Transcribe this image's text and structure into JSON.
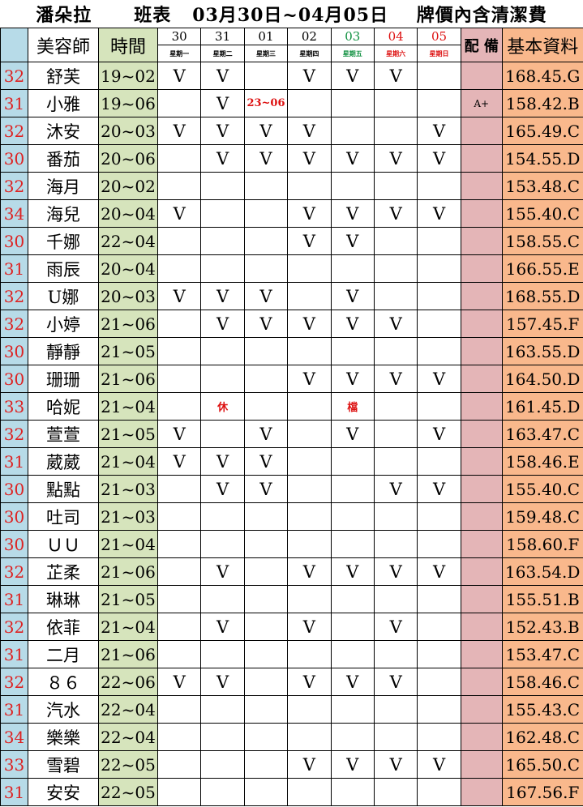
{
  "title": "潘朵拉      班表   03月30日~04月05日    牌價內含清潔費",
  "headers": {
    "name": "美容師",
    "time": "時間",
    "peibei": "配 備",
    "info": "基本資料"
  },
  "days": [
    {
      "d": "30",
      "w": "星期一"
    },
    {
      "d": "31",
      "w": "星期二"
    },
    {
      "d": "01",
      "w": "星期三"
    },
    {
      "d": "02",
      "w": "星期四"
    },
    {
      "d": "03",
      "w": "星期五"
    },
    {
      "d": "04",
      "w": "星期六"
    },
    {
      "d": "05",
      "w": "星期日"
    }
  ],
  "colors": {
    "friday": "#109040",
    "weekend": "#dd1111",
    "number": "#dd2222",
    "time_bg": "#d6e4bc",
    "peibei_bg": "#e4b5b7",
    "info_bg": "#f9b88c",
    "num_bg": "#b7dbe8"
  },
  "rows": [
    {
      "n": "32",
      "name": "舒芙",
      "time": "19~02",
      "s": [
        "V",
        "V",
        "",
        "V",
        "V",
        "V",
        ""
      ],
      "p": "",
      "info": "168.45.G"
    },
    {
      "n": "31",
      "name": "小雅",
      "time": "19~06",
      "s": [
        "",
        "V",
        "23~06",
        "",
        "",
        "",
        ""
      ],
      "p": "A+",
      "info": "158.42.B"
    },
    {
      "n": "32",
      "name": "沐安",
      "time": "20~03",
      "s": [
        "V",
        "V",
        "V",
        "V",
        "",
        "",
        "V"
      ],
      "p": "",
      "info": "165.49.C"
    },
    {
      "n": "30",
      "name": "番茄",
      "time": "20~06",
      "s": [
        "",
        "V",
        "V",
        "V",
        "V",
        "V",
        "V"
      ],
      "p": "",
      "info": "154.55.D"
    },
    {
      "n": "32",
      "name": "海月",
      "time": "20~02",
      "s": [
        "",
        "",
        "",
        "",
        "",
        "",
        ""
      ],
      "p": "",
      "info": "153.48.C"
    },
    {
      "n": "34",
      "name": "海兒",
      "time": "20~04",
      "s": [
        "V",
        "",
        "",
        "V",
        "V",
        "V",
        "V"
      ],
      "p": "",
      "info": "155.40.C"
    },
    {
      "n": "30",
      "name": "千娜",
      "time": "22~04",
      "s": [
        "",
        "",
        "",
        "V",
        "V",
        "",
        ""
      ],
      "p": "",
      "info": "158.55.C"
    },
    {
      "n": "31",
      "name": "雨辰",
      "time": "20~04",
      "s": [
        "",
        "",
        "",
        "",
        "",
        "",
        ""
      ],
      "p": "",
      "info": "166.55.E"
    },
    {
      "n": "32",
      "name": "U娜",
      "time": "20~03",
      "s": [
        "V",
        "V",
        "V",
        "",
        "V",
        "",
        ""
      ],
      "p": "",
      "info": "168.55.D"
    },
    {
      "n": "32",
      "name": "小婷",
      "time": "21~06",
      "s": [
        "",
        "V",
        "V",
        "V",
        "V",
        "V",
        ""
      ],
      "p": "",
      "info": "157.45.F"
    },
    {
      "n": "30",
      "name": "靜靜",
      "time": "21~05",
      "s": [
        "",
        "",
        "",
        "",
        "",
        "",
        ""
      ],
      "p": "",
      "info": "163.55.D"
    },
    {
      "n": "30",
      "name": "珊珊",
      "time": "21~06",
      "s": [
        "",
        "",
        "",
        "V",
        "V",
        "V",
        "V"
      ],
      "p": "",
      "info": "164.50.D"
    },
    {
      "n": "33",
      "name": "哈妮",
      "time": "21~04",
      "s": [
        "",
        "休",
        "",
        "",
        "檔",
        "",
        ""
      ],
      "p": "",
      "info": "161.45.D"
    },
    {
      "n": "32",
      "name": "萱萱",
      "time": "21~05",
      "s": [
        "V",
        "",
        "V",
        "",
        "V",
        "",
        "V"
      ],
      "p": "",
      "info": "163.47.C"
    },
    {
      "n": "31",
      "name": "葳葳",
      "time": "21~04",
      "s": [
        "V",
        "V",
        "V",
        "",
        "",
        "",
        ""
      ],
      "p": "",
      "info": "158.46.E"
    },
    {
      "n": "30",
      "name": "點點",
      "time": "21~03",
      "s": [
        "",
        "V",
        "V",
        "",
        "",
        "V",
        "V"
      ],
      "p": "",
      "info": "155.40.C"
    },
    {
      "n": "30",
      "name": "吐司",
      "time": "21~03",
      "s": [
        "",
        "",
        "",
        "",
        "",
        "",
        ""
      ],
      "p": "",
      "info": "159.48.C"
    },
    {
      "n": "30",
      "name": "ＵＵ",
      "time": "21~04",
      "s": [
        "",
        "",
        "",
        "",
        "",
        "",
        ""
      ],
      "p": "",
      "info": "158.60.F"
    },
    {
      "n": "32",
      "name": "芷柔",
      "time": "21~06",
      "s": [
        "",
        "V",
        "",
        "V",
        "V",
        "V",
        "V"
      ],
      "p": "",
      "info": "163.54.D"
    },
    {
      "n": "31",
      "name": "琳琳",
      "time": "21~05",
      "s": [
        "",
        "",
        "",
        "",
        "",
        "",
        ""
      ],
      "p": "",
      "info": "155.51.B"
    },
    {
      "n": "32",
      "name": "依菲",
      "time": "21~04",
      "s": [
        "",
        "V",
        "",
        "V",
        "",
        "V",
        ""
      ],
      "p": "",
      "info": "152.43.B"
    },
    {
      "n": "31",
      "name": "二月",
      "time": "21~06",
      "s": [
        "",
        "",
        "",
        "",
        "",
        "",
        ""
      ],
      "p": "",
      "info": "153.47.C"
    },
    {
      "n": "32",
      "name": "８６",
      "time": "22~06",
      "s": [
        "V",
        "V",
        "",
        "V",
        "V",
        "V",
        ""
      ],
      "p": "",
      "info": "158.46.C"
    },
    {
      "n": "31",
      "name": "汽水",
      "time": "22~04",
      "s": [
        "",
        "",
        "",
        "",
        "",
        "",
        ""
      ],
      "p": "",
      "info": "155.43.C"
    },
    {
      "n": "34",
      "name": "樂樂",
      "time": "22~04",
      "s": [
        "",
        "",
        "",
        "",
        "",
        "",
        ""
      ],
      "p": "",
      "info": "162.48.C"
    },
    {
      "n": "33",
      "name": "雪碧",
      "time": "22~05",
      "s": [
        "",
        "",
        "",
        "V",
        "V",
        "V",
        "V"
      ],
      "p": "",
      "info": "165.50.C"
    },
    {
      "n": "31",
      "name": "安安",
      "time": "22~05",
      "s": [
        "",
        "",
        "",
        "",
        "",
        "",
        ""
      ],
      "p": "",
      "info": "167.56.F"
    }
  ]
}
